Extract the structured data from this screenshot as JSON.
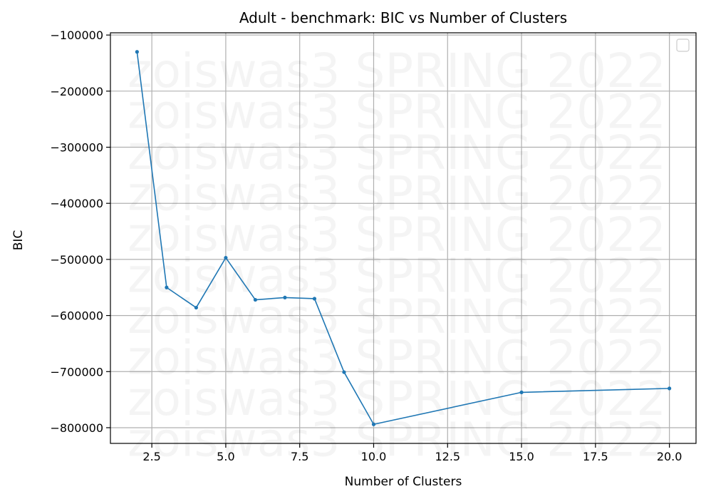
{
  "chart_data": {
    "type": "line",
    "title": "Adult - benchmark: BIC vs Number of Clusters",
    "xlabel": "Number of Clusters",
    "ylabel": "BIC",
    "x": [
      2,
      3,
      4,
      5,
      6,
      7,
      8,
      9,
      10,
      15,
      20
    ],
    "series": [
      {
        "values": [
          -130000,
          -550000,
          -586000,
          -497000,
          -572000,
          -568000,
          -570000,
          -701000,
          -794000,
          -737000,
          -730000
        ],
        "color": "#1f77b4"
      }
    ],
    "xlim": [
      1.1,
      20.9
    ],
    "ylim": [
      -828000,
      -96000
    ],
    "xticks": [
      2.5,
      5.0,
      7.5,
      10.0,
      12.5,
      15.0,
      17.5,
      20.0
    ],
    "xtick_labels": [
      "2.5",
      "5.0",
      "7.5",
      "10.0",
      "12.5",
      "15.0",
      "17.5",
      "20.0"
    ],
    "yticks": [
      -100000,
      -200000,
      -300000,
      -400000,
      -500000,
      -600000,
      -700000,
      -800000
    ],
    "ytick_labels": [
      "−100000",
      "−200000",
      "−300000",
      "−400000",
      "−500000",
      "−600000",
      "−700000",
      "−800000"
    ],
    "grid": true,
    "legend": "top-right, empty",
    "watermark": "zoiswas3 SPRING 2022"
  }
}
